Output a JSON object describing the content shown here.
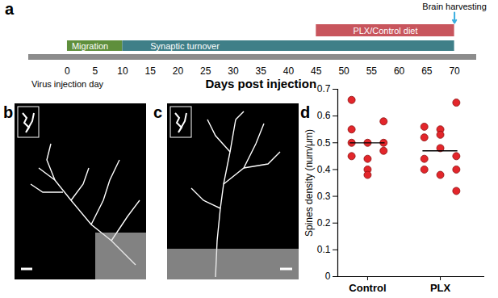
{
  "panels": [
    "a",
    "b",
    "c",
    "d"
  ],
  "timeline": {
    "xlabel": "Days post injection",
    "origin_label": "Virus injection day",
    "xlim": [
      -7,
      74
    ],
    "xticks": [
      0,
      5,
      10,
      15,
      20,
      25,
      30,
      35,
      40,
      45,
      50,
      55,
      60,
      65,
      70
    ],
    "phases": [
      {
        "label": "Migration",
        "start": 0,
        "end": 10,
        "color": "#5f8f3c"
      },
      {
        "label": "Synaptic turnover",
        "start": 10,
        "end": 70,
        "color": "#3f7f88"
      }
    ],
    "treatment": {
      "label": "PLX/Control diet",
      "start": 45,
      "end": 70,
      "color": "#c8555d"
    },
    "event": {
      "label": "Brain harvesting",
      "day": 70,
      "color": "#3aaee0"
    }
  },
  "chart_data": {
    "type": "scatter",
    "categories": [
      "Control",
      "PLX"
    ],
    "values": [
      [
        0.66,
        0.55,
        0.5,
        0.45,
        0.5,
        0.44,
        0.4,
        0.38,
        0.58,
        0.5,
        0.47
      ],
      [
        0.56,
        0.52,
        0.44,
        0.4,
        0.55,
        0.53,
        0.48,
        0.38,
        0.65,
        0.45,
        0.4,
        0.32
      ]
    ],
    "means": [
      0.5,
      0.47
    ],
    "ylabel": "Spines density (num/μm)",
    "ylim": [
      0,
      0.7
    ],
    "yticks": [
      0,
      0.1,
      0.2,
      0.3,
      0.4,
      0.5,
      0.6,
      0.7
    ],
    "color": "#e3262b",
    "marker": "circle"
  }
}
